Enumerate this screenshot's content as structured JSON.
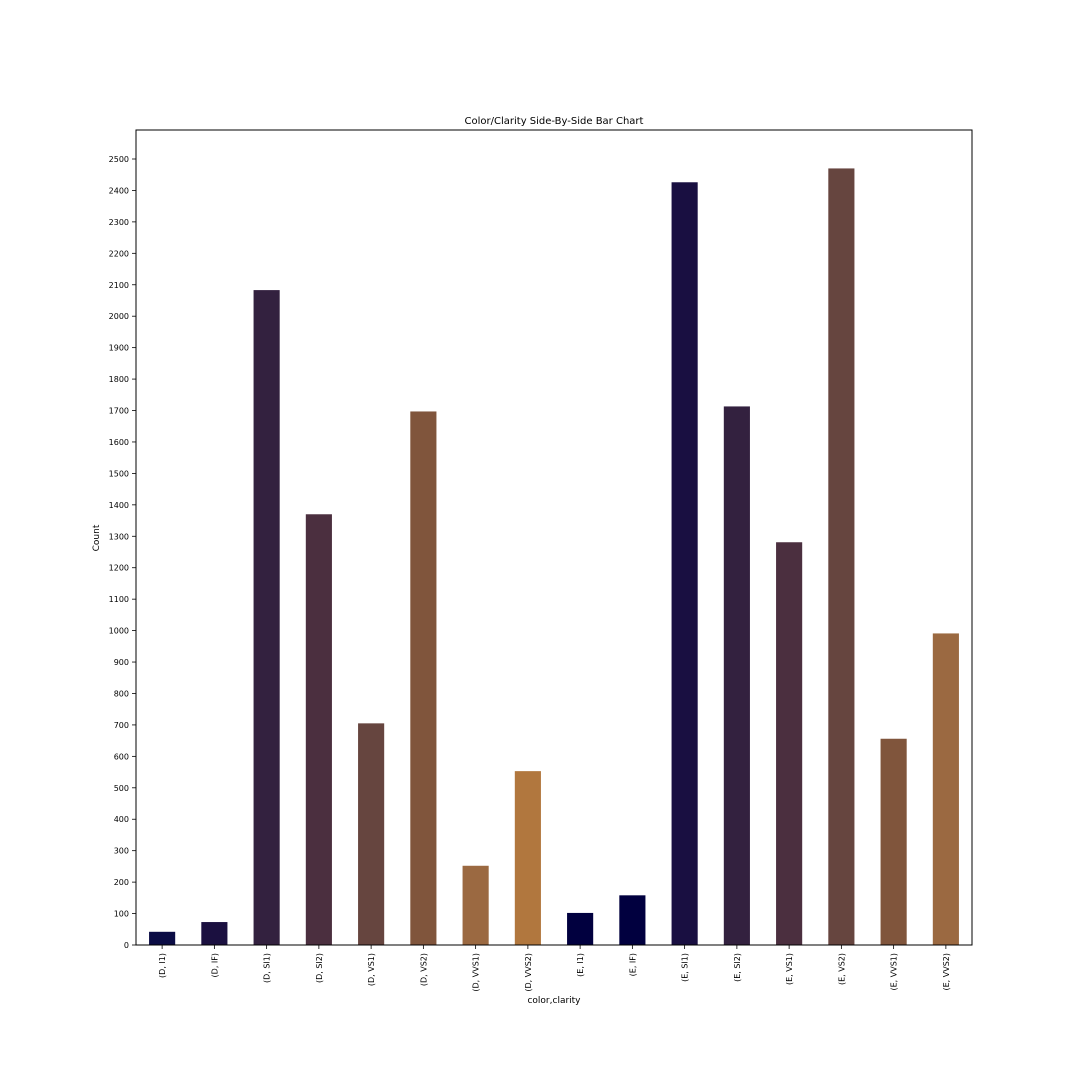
{
  "chart_data": {
    "type": "bar",
    "title": "Color/Clarity Side-By-Side Bar Chart",
    "xlabel": "color,clarity",
    "ylabel": "Count",
    "ylim": [
      0,
      2600
    ],
    "yticks": [
      0,
      100,
      200,
      300,
      400,
      500,
      600,
      700,
      800,
      900,
      1000,
      1100,
      1200,
      1300,
      1400,
      1500,
      1600,
      1700,
      1800,
      1900,
      2000,
      2100,
      2200,
      2300,
      2400,
      2500
    ],
    "grid": false,
    "legend": "none",
    "categories": [
      "(D, I1)",
      "(D, IF)",
      "(D, SI1)",
      "(D, SI2)",
      "(D, VS1)",
      "(D, VS2)",
      "(D, VVS1)",
      "(D, VVS2)",
      "(E, I1)",
      "(E, IF)",
      "(E, SI1)",
      "(E, SI2)",
      "(E, VS1)",
      "(E, VS2)",
      "(E, VVS1)",
      "(E, VVS2)"
    ],
    "values": [
      42,
      73,
      2083,
      1370,
      705,
      1697,
      252,
      553,
      102,
      158,
      2426,
      1713,
      1281,
      2470,
      656,
      991
    ],
    "colors": [
      "#0b0c45",
      "#1b1040",
      "#33213f",
      "#4b2f3f",
      "#66453f",
      "#80553c",
      "#9b6941",
      "#b1773e",
      "#01003f",
      "#01003f",
      "#190f41",
      "#33213f",
      "#4b2f3f",
      "#66453f",
      "#80553c",
      "#9b6941"
    ]
  }
}
